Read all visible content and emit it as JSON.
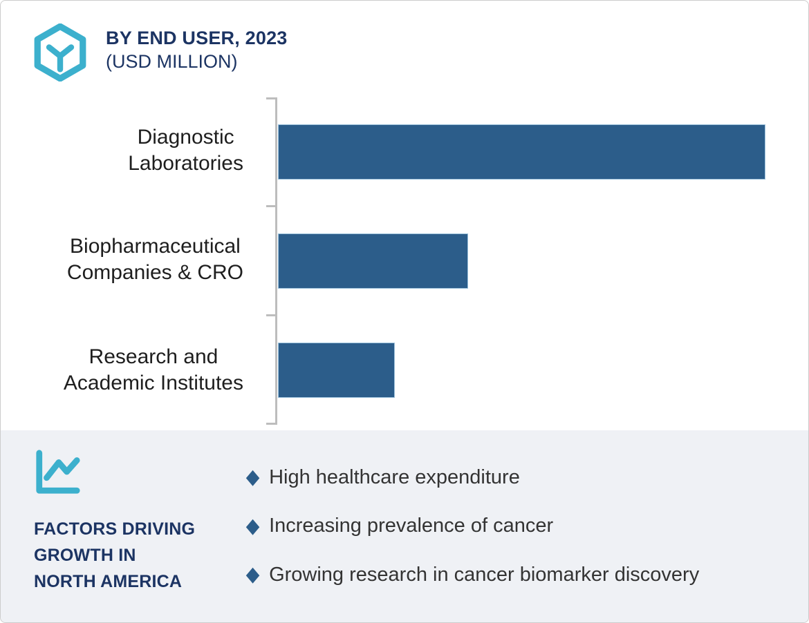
{
  "header": {
    "title": "BY END USER, 2023",
    "subtitle": "(USD MILLION)"
  },
  "chart_data": {
    "type": "bar",
    "orientation": "horizontal",
    "title": "BY END USER, 2023",
    "subtitle": "(USD MILLION)",
    "xlabel": "",
    "ylabel": "",
    "categories": [
      "Diagnostic Laboratories",
      "Biopharmaceutical Companies & CRO",
      "Research and Academic Institutes"
    ],
    "values_pct_of_max_estimated": [
      100,
      39,
      24
    ],
    "value_labels_shown": false,
    "grid": false,
    "legend": "none",
    "bar_color": "#2c5d8a"
  },
  "chart": {
    "labels": [
      {
        "lines": [
          "Diagnostic",
          "Laboratories"
        ],
        "value_pct": 100
      },
      {
        "lines": [
          "Biopharmaceutical",
          "Companies & CRO"
        ],
        "value_pct": 39
      },
      {
        "lines": [
          "Research and",
          "Academic Institutes"
        ],
        "value_pct": 24
      }
    ]
  },
  "factors": {
    "heading_lines": [
      "FACTORS DRIVING",
      "GROWTH IN",
      "NORTH AMERICA"
    ],
    "bullet_glyph": "◆",
    "items": [
      "High healthcare expenditure",
      "Increasing prevalence of cancer",
      "Growing research in cancer biomarker discovery"
    ]
  },
  "icons": {
    "brand": "hexagon-y-logo-icon",
    "growth": "line-chart-icon"
  },
  "colors": {
    "teal": "#3cb0cd",
    "navy": "#1c3463",
    "bar-blue": "#2c5d8a",
    "panel-bg": "#eff1f5",
    "axis-gray": "#bdbdbd"
  }
}
